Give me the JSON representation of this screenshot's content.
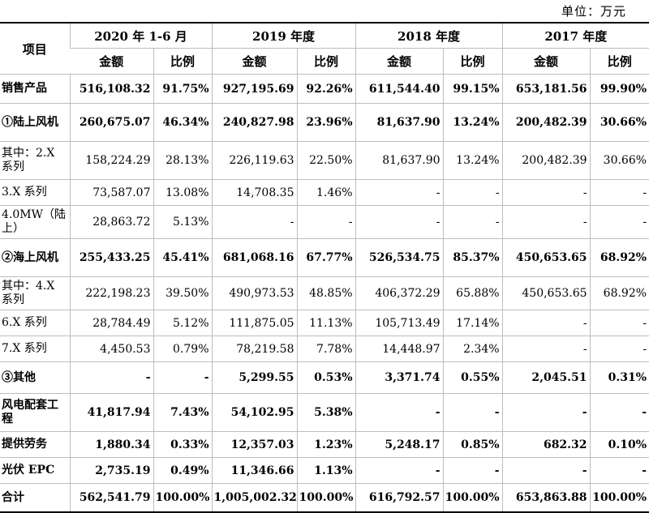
{
  "unit": "单位：万元",
  "header": {
    "item": "项目",
    "periods": [
      "2020 年 1-6 月",
      "2019 年度",
      "2018 年度",
      "2017 年度"
    ],
    "amount": "金额",
    "ratio": "比例"
  },
  "rows": [
    {
      "label": "销售产品",
      "bold": true,
      "values": [
        "516,108.32",
        "91.75%",
        "927,195.69",
        "92.26%",
        "611,544.40",
        "99.15%",
        "653,181.56",
        "99.90%"
      ]
    },
    {
      "label": "①陆上风机",
      "bold": true,
      "values": [
        "260,675.07",
        "46.34%",
        "240,827.98",
        "23.96%",
        "81,637.90",
        "13.24%",
        "200,482.39",
        "30.66%"
      ]
    },
    {
      "label": "其中：2.X 系列",
      "bold": false,
      "values": [
        "158,224.29",
        "28.13%",
        "226,119.63",
        "22.50%",
        "81,637.90",
        "13.24%",
        "200,482.39",
        "30.66%"
      ]
    },
    {
      "label": "3.X 系列",
      "bold": false,
      "values": [
        "73,587.07",
        "13.08%",
        "14,708.35",
        "1.46%",
        "-",
        "-",
        "-",
        "-"
      ]
    },
    {
      "label": "4.0MW（陆上）",
      "bold": false,
      "values": [
        "28,863.72",
        "5.13%",
        "-",
        "-",
        "-",
        "-",
        "-",
        "-"
      ]
    },
    {
      "label": "②海上风机",
      "bold": true,
      "values": [
        "255,433.25",
        "45.41%",
        "681,068.16",
        "67.77%",
        "526,534.75",
        "85.37%",
        "450,653.65",
        "68.92%"
      ]
    },
    {
      "label": "其中：4.X 系列",
      "bold": false,
      "values": [
        "222,198.23",
        "39.50%",
        "490,973.53",
        "48.85%",
        "406,372.29",
        "65.88%",
        "450,653.65",
        "68.92%"
      ]
    },
    {
      "label": "6.X 系列",
      "bold": false,
      "values": [
        "28,784.49",
        "5.12%",
        "111,875.05",
        "11.13%",
        "105,713.49",
        "17.14%",
        "-",
        "-"
      ]
    },
    {
      "label": "7.X 系列",
      "bold": false,
      "values": [
        "4,450.53",
        "0.79%",
        "78,219.58",
        "7.78%",
        "14,448.97",
        "2.34%",
        "-",
        "-"
      ]
    },
    {
      "label": "③其他",
      "bold": true,
      "values": [
        "-",
        "-",
        "5,299.55",
        "0.53%",
        "3,371.74",
        "0.55%",
        "2,045.51",
        "0.31%"
      ]
    },
    {
      "label": "风电配套工程",
      "bold": true,
      "values": [
        "41,817.94",
        "7.43%",
        "54,102.95",
        "5.38%",
        "-",
        "-",
        "-",
        "-"
      ]
    },
    {
      "label": "提供劳务",
      "bold": true,
      "values": [
        "1,880.34",
        "0.33%",
        "12,357.03",
        "1.23%",
        "5,248.17",
        "0.85%",
        "682.32",
        "0.10%"
      ]
    },
    {
      "label": "光伏 EPC",
      "bold": true,
      "values": [
        "2,735.19",
        "0.49%",
        "11,346.66",
        "1.13%",
        "-",
        "-",
        "-",
        "-"
      ]
    },
    {
      "label": "合计",
      "bold": true,
      "values": [
        "562,541.79",
        "100.00%",
        "1,005,002.32",
        "100.00%",
        "616,792.57",
        "100.00%",
        "653,863.88",
        "100.00%"
      ]
    }
  ]
}
